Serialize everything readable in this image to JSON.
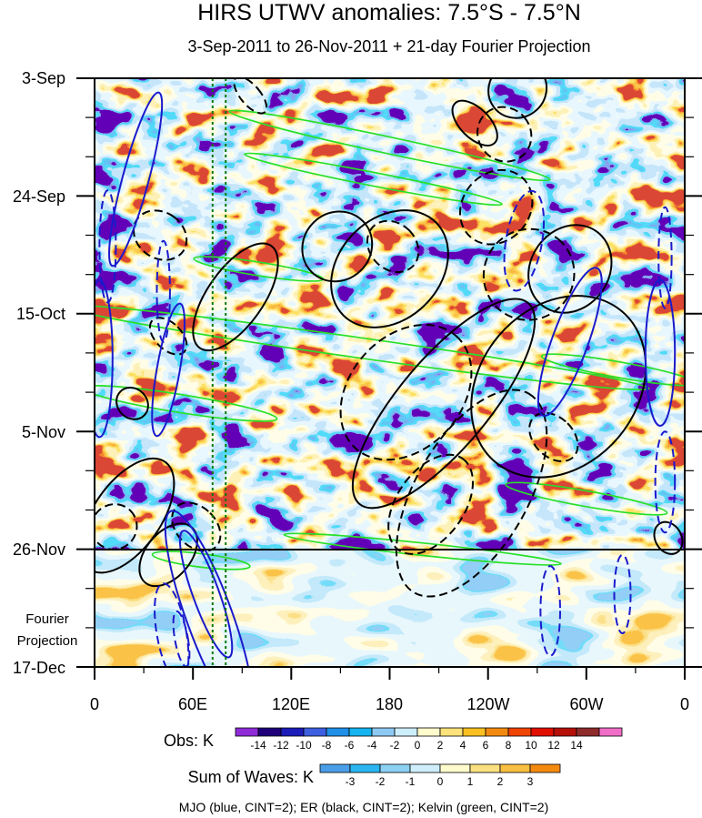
{
  "chart_data": {
    "type": "heatmap",
    "title": "HIRS UTWV anomalies: 7.5°S - 7.5°N",
    "subtitle": "3-Sep-2011 to 26-Nov-2011 + 21-day Fourier Projection",
    "y_ticks": [
      "3-Sep",
      "24-Sep",
      "15-Oct",
      "5-Nov",
      "26-Nov",
      "17-Dec"
    ],
    "x_ticks": [
      "0",
      "60E",
      "120E",
      "180",
      "120W",
      "60W",
      "0"
    ],
    "x_range_deg": [
      0,
      360
    ],
    "y_range_days": [
      0,
      105
    ],
    "observation_end_day": 84,
    "projection_label_line1": "Fourier",
    "projection_label_line2": "Projection",
    "reference_longitudes_deg": [
      72,
      80
    ],
    "obs_colorbar": {
      "label": "Obs: K",
      "tick_labels": [
        "-14",
        "-12",
        "-10",
        "-8",
        "-6",
        "-4",
        "-2",
        "0",
        "2",
        "4",
        "6",
        "8",
        "10",
        "12",
        "14"
      ],
      "colors": [
        "#8f2cd8",
        "#20007a",
        "#1c1cb8",
        "#3e5fe0",
        "#1f8fe8",
        "#16b4f0",
        "#8ec9f4",
        "#cdeefb",
        "#fffbcc",
        "#fbe27a",
        "#f9c020",
        "#f38a10",
        "#f04406",
        "#e00f00",
        "#b5100a",
        "#8e2b2b",
        "#f06ec8"
      ]
    },
    "waves_colorbar": {
      "label": "Sum of Waves: K",
      "tick_labels": [
        "-3",
        "-2",
        "-1",
        "0",
        "1",
        "2",
        "3"
      ],
      "colors": [
        "#4a9ee8",
        "#2bb6f2",
        "#8cd0f4",
        "#cdeefa",
        "#fffbcc",
        "#fbe080",
        "#f9bf40",
        "#f38a10"
      ]
    },
    "footer": "MJO (blue, CINT=2); ER (black, CINT=2); Kelvin (green, CINT=2)",
    "wave_colors": {
      "mjo": "#1a1acc",
      "er": "#000000",
      "kelvin": "#28e028",
      "reference": "#0a7a0a"
    },
    "contours": {
      "mjo": [
        {
          "lon": 25,
          "day": 18,
          "rlon": 8,
          "rday": 16,
          "rot": 15,
          "dashed": false
        },
        {
          "lon": 3,
          "day": 50,
          "rlon": 8,
          "rday": 14,
          "rot": 0,
          "dashed": false
        },
        {
          "lon": 45,
          "day": 52,
          "rlon": 7,
          "rday": 12,
          "rot": 10,
          "dashed": false
        },
        {
          "lon": 42,
          "day": 38,
          "rlon": 4,
          "rday": 9,
          "rot": 0,
          "dashed": true
        },
        {
          "lon": 8,
          "day": 30,
          "rlon": 5,
          "rday": 10,
          "rot": 0,
          "dashed": true
        },
        {
          "lon": 70,
          "day": 96,
          "rlon": 14,
          "rday": 20,
          "rot": -20,
          "dashed": false
        },
        {
          "lon": 68,
          "day": 92,
          "rlon": 8,
          "rday": 12,
          "rot": -20,
          "dashed": false
        },
        {
          "lon": 47,
          "day": 99,
          "rlon": 9,
          "rday": 9,
          "rot": -10,
          "dashed": true
        },
        {
          "lon": 53,
          "day": 100,
          "rlon": 4,
          "rday": 5,
          "rot": -10,
          "dashed": true
        },
        {
          "lon": 262,
          "day": 29,
          "rlon": 11,
          "rday": 9,
          "rot": 10,
          "dashed": true
        },
        {
          "lon": 290,
          "day": 47,
          "rlon": 11,
          "rday": 14,
          "rot": 20,
          "dashed": false
        },
        {
          "lon": 345,
          "day": 49,
          "rlon": 9,
          "rday": 13,
          "rot": 0,
          "dashed": false
        },
        {
          "lon": 348,
          "day": 72,
          "rlon": 6,
          "rday": 9,
          "rot": 0,
          "dashed": true
        },
        {
          "lon": 348,
          "day": 32,
          "rlon": 4,
          "rday": 9,
          "rot": 0,
          "dashed": true
        },
        {
          "lon": 278,
          "day": 95,
          "rlon": 6,
          "rday": 8,
          "rot": 0,
          "dashed": true
        },
        {
          "lon": 322,
          "day": 92,
          "rlon": 5,
          "rday": 7,
          "rot": 0,
          "dashed": true
        }
      ],
      "er": [
        {
          "lon": 283,
          "day": 55,
          "rlon": 60,
          "rday": 14,
          "rot": -50,
          "dashed": false
        },
        {
          "lon": 180,
          "day": 34,
          "rlon": 40,
          "rday": 9,
          "rot": -45,
          "dashed": false
        },
        {
          "lon": 213,
          "day": 58,
          "rlon": 80,
          "rday": 8,
          "rot": -50,
          "dashed": false
        },
        {
          "lon": 148,
          "day": 30,
          "rlon": 22,
          "rday": 6,
          "rot": -45,
          "dashed": false
        },
        {
          "lon": 290,
          "day": 34,
          "rlon": 28,
          "rday": 7,
          "rot": -55,
          "dashed": false
        },
        {
          "lon": 232,
          "day": 8,
          "rlon": 9,
          "rday": 5,
          "rot": -45,
          "dashed": false
        },
        {
          "lon": 258,
          "day": 2,
          "rlon": 18,
          "rday": 5,
          "rot": -35,
          "dashed": false
        },
        {
          "lon": 20,
          "day": 78,
          "rlon": 40,
          "rday": 6,
          "rot": -55,
          "dashed": false
        },
        {
          "lon": 45,
          "day": 85,
          "rlon": 22,
          "rday": 4,
          "rot": -50,
          "dashed": false
        },
        {
          "lon": 23,
          "day": 58,
          "rlon": 9,
          "rday": 3,
          "rot": -45,
          "dashed": false
        },
        {
          "lon": 86,
          "day": 39,
          "rlon": 38,
          "rday": 5,
          "rot": -55,
          "dashed": false
        },
        {
          "lon": 350,
          "day": 82,
          "rlon": 8,
          "rday": 3,
          "rot": -30,
          "dashed": false
        },
        {
          "lon": 190,
          "day": 56,
          "rlon": 46,
          "rday": 10,
          "rot": -48,
          "dashed": true
        },
        {
          "lon": 230,
          "day": 74,
          "rlon": 70,
          "rday": 10,
          "rot": -60,
          "dashed": true
        },
        {
          "lon": 205,
          "day": 76,
          "rlon": 34,
          "rday": 6,
          "rot": -55,
          "dashed": true
        },
        {
          "lon": 265,
          "day": 35,
          "rlon": 28,
          "rday": 8,
          "rot": -50,
          "dashed": true
        },
        {
          "lon": 245,
          "day": 23,
          "rlon": 24,
          "rday": 6,
          "rot": -50,
          "dashed": true
        },
        {
          "lon": 250,
          "day": 10,
          "rlon": 16,
          "rday": 5,
          "rot": -40,
          "dashed": true
        },
        {
          "lon": 182,
          "day": 30,
          "rlon": 14,
          "rday": 5,
          "rot": -45,
          "dashed": true
        },
        {
          "lon": 40,
          "day": 28,
          "rlon": 14,
          "rday": 5,
          "rot": -55,
          "dashed": true
        },
        {
          "lon": 12,
          "day": 80,
          "rlon": 14,
          "rday": 4,
          "rot": -45,
          "dashed": true
        },
        {
          "lon": 280,
          "day": 64,
          "rlon": 12,
          "rday": 5,
          "rot": -45,
          "dashed": true
        },
        {
          "lon": 62,
          "day": 80,
          "rlon": 12,
          "rday": 5,
          "rot": -45,
          "dashed": true
        },
        {
          "lon": 95,
          "day": 3,
          "rlon": 6,
          "rday": 4,
          "rot": -40,
          "dashed": true
        },
        {
          "lon": 45,
          "day": 46,
          "rlon": 8,
          "rday": 4,
          "rot": -45,
          "dashed": true
        }
      ],
      "kelvin": [
        {
          "lon": 160,
          "day": 48,
          "rlon": 180,
          "rday": 1.8,
          "rot": 8,
          "dashed": false
        },
        {
          "lon": 180,
          "day": 12,
          "rlon": 100,
          "rday": 1.5,
          "rot": 12,
          "dashed": false
        },
        {
          "lon": 170,
          "day": 18,
          "rlon": 80,
          "rday": 1.2,
          "rot": 11,
          "dashed": false
        },
        {
          "lon": 52,
          "day": 58,
          "rlon": 60,
          "rday": 1.6,
          "rot": 9,
          "dashed": false
        },
        {
          "lon": 100,
          "day": 34,
          "rlon": 40,
          "rday": 1.2,
          "rot": 9,
          "dashed": false
        },
        {
          "lon": 300,
          "day": 75,
          "rlon": 50,
          "rday": 1.4,
          "rot": 10,
          "dashed": false
        },
        {
          "lon": 320,
          "day": 52,
          "rlon": 48,
          "rday": 1.4,
          "rot": 10,
          "dashed": false
        },
        {
          "lon": 200,
          "day": 84,
          "rlon": 85,
          "rday": 1.1,
          "rot": 6,
          "dashed": false
        },
        {
          "lon": 65,
          "day": 86,
          "rlon": 30,
          "rday": 1.2,
          "rot": 7,
          "dashed": false
        }
      ]
    }
  }
}
